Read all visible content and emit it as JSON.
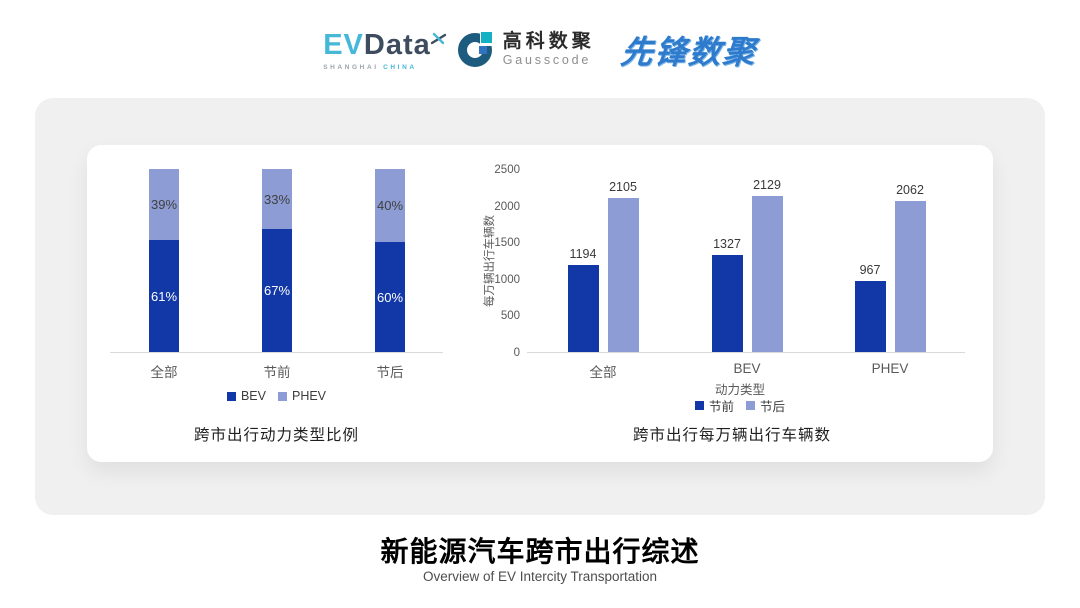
{
  "header": {
    "evdata": {
      "ev": "EV",
      "data": "Data",
      "sub_left": "SHANGHAI",
      "sub_right": "CHINA"
    },
    "gausscode": {
      "cn": "高科数聚",
      "en": "Gausscode"
    },
    "xianfeng": {
      "text": "先锋数聚"
    }
  },
  "colors": {
    "series_dark_blue": "#1237a6",
    "series_light_blue": "#8d9cd4",
    "evdata_cyan": "#45b8d8",
    "evdata_slate": "#3d4d5f",
    "gausscode_petrol": "#1d5c7e",
    "gausscode_teal": "#14b1c4",
    "xianfeng_blue": "#2e7bcd",
    "panel_gray": "#f0f0f1",
    "axis_line": "#d9d9d9"
  },
  "chart_data": [
    {
      "type": "bar",
      "subtype": "stacked",
      "title": "跨市出行动力类型比例",
      "categories": [
        "全部",
        "节前",
        "节后"
      ],
      "series": [
        {
          "name": "BEV",
          "color": "#1237a6",
          "values": [
            61,
            67,
            60
          ],
          "label_suffix": "%",
          "label_color": "#ffffff"
        },
        {
          "name": "PHEV",
          "color": "#8d9cd4",
          "values": [
            39,
            33,
            40
          ],
          "label_suffix": "%",
          "label_color": "#3f3f3f"
        }
      ],
      "ylim": [
        0,
        100
      ],
      "grid": false,
      "legend_position": "bottom"
    },
    {
      "type": "bar",
      "subtype": "grouped",
      "title": "跨市出行每万辆出行车辆数",
      "xlabel": "动力类型",
      "ylabel": "每万辆出行车辆数",
      "categories": [
        "全部",
        "BEV",
        "PHEV"
      ],
      "series": [
        {
          "name": "节前",
          "color": "#1237a6",
          "values": [
            1194,
            1327,
            967
          ]
        },
        {
          "name": "节后",
          "color": "#8d9cd4",
          "values": [
            2105,
            2129,
            2062
          ]
        }
      ],
      "yticks": [
        0,
        500,
        1000,
        1500,
        2000,
        2500
      ],
      "ylim": [
        0,
        2500
      ],
      "grid": false,
      "legend_position": "bottom"
    }
  ],
  "footer": {
    "title": "新能源汽车跨市出行综述",
    "subtitle": "Overview of EV Intercity Transportation"
  }
}
